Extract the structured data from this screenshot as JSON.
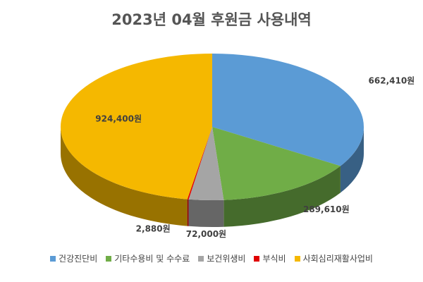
{
  "chart_data": {
    "type": "pie",
    "title": "2023년 04월 후원금 사용내역",
    "series": [
      {
        "name": "건강진단비",
        "value": 662410,
        "label": "662,410원",
        "color": "#5B9BD5"
      },
      {
        "name": "기타수용비 및 수수료",
        "value": 289610,
        "label": "289,610원",
        "color": "#70AD47"
      },
      {
        "name": "보건위생비",
        "value": 72000,
        "label": "72,000원",
        "color": "#A5A5A5"
      },
      {
        "name": "부식비",
        "value": 2880,
        "label": "2,880원",
        "color": "#E00000"
      },
      {
        "name": "사회심리재활사업비",
        "value": 924400,
        "label": "924,400원",
        "color": "#F5B800"
      }
    ],
    "legend_position": "bottom",
    "style": "3d"
  }
}
